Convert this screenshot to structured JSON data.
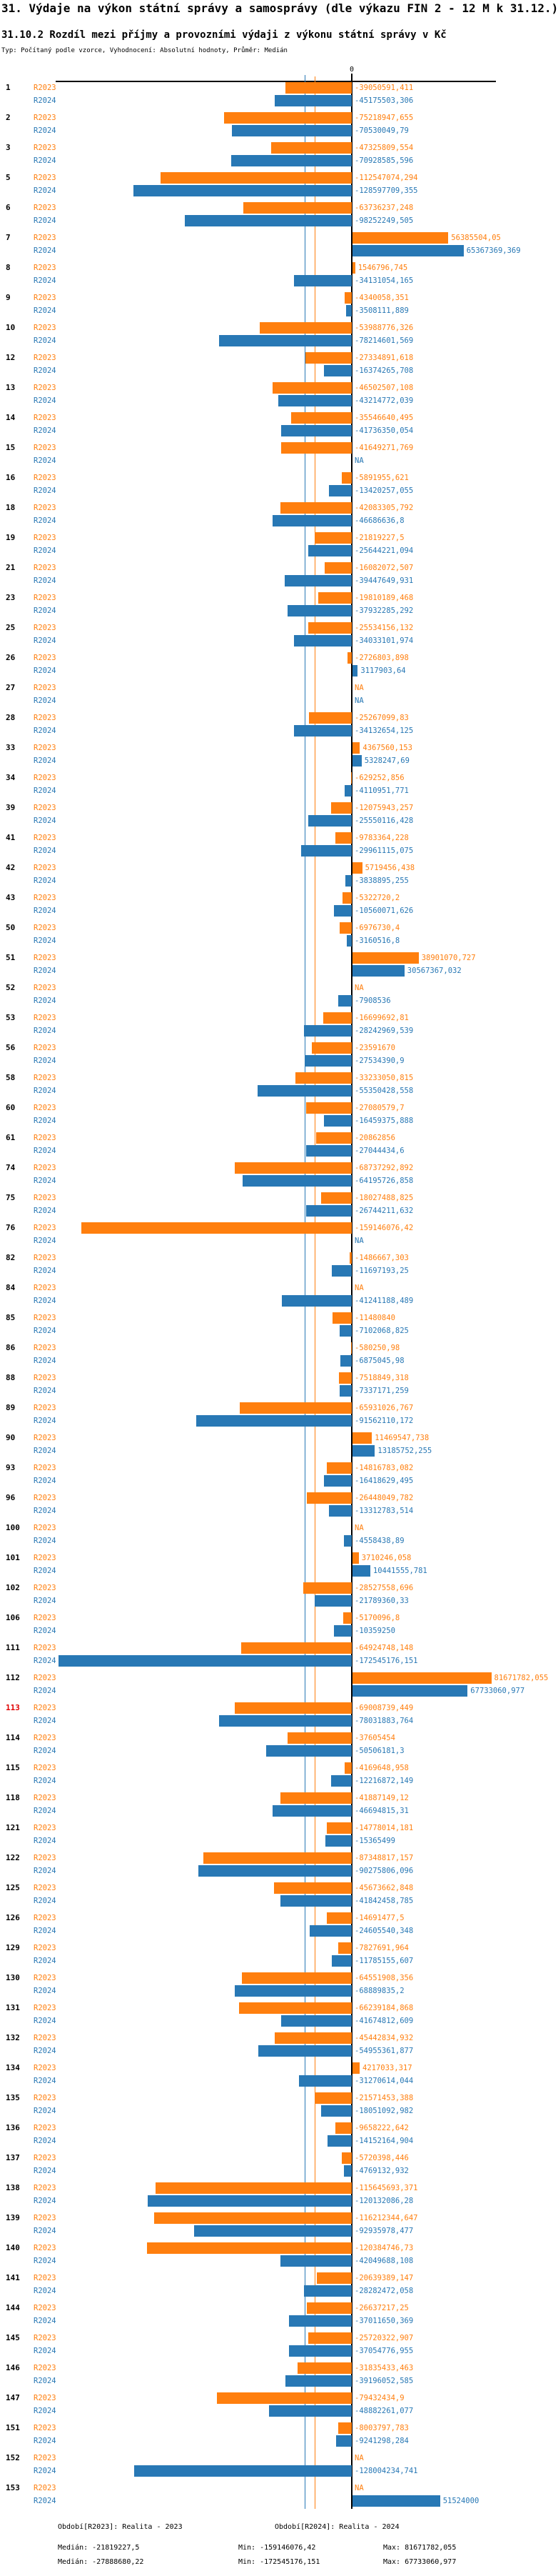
{
  "header": {
    "title": "31. Výdaje na výkon státní správy a samosprávy (dle výkazu FIN 2 - 12 M k 31.12.)",
    "subtitle": "31.10.2 Rozdíl mezi příjmy a provozními výdaji z výkonu státní správy v Kč",
    "meta": "Typ: Počítaný podle vzorce, Vyhodnocení: Absolutní hodnoty, Průměr: Medián"
  },
  "colors": {
    "r2023": "#FF7F0E",
    "r2024": "#2878B5",
    "highlight_id": "#E00000",
    "axis": "#000000"
  },
  "chart_data": {
    "type": "bar",
    "orientation": "horizontal",
    "unit": "Kč",
    "zero_label": "0",
    "grid": false,
    "axis_range": [
      -175000000,
      85000000
    ],
    "series": [
      {
        "key": "R2023",
        "label": "R2023",
        "color": "#FF7F0E",
        "median": -21819227.5,
        "min": -159146076.42,
        "max": 81671782.055
      },
      {
        "key": "R2024",
        "label": "R2024",
        "color": "#2878B5",
        "median": -27888680.22,
        "min": -172545176.151,
        "max": 67733060.977
      }
    ],
    "rows": [
      {
        "id": "1",
        "R2023": "-39050591,411",
        "R2024": "-45175503,306"
      },
      {
        "id": "2",
        "R2023": "-75218947,655",
        "R2024": "-70530049,79"
      },
      {
        "id": "3",
        "R2023": "-47325809,554",
        "R2024": "-70928585,596"
      },
      {
        "id": "5",
        "R2023": "-112547074,294",
        "R2024": "-128597709,355"
      },
      {
        "id": "6",
        "R2023": "-63736237,248",
        "R2024": "-98252249,505"
      },
      {
        "id": "7",
        "R2023": "56385504,05",
        "R2024": "65367369,369"
      },
      {
        "id": "8",
        "R2023": "1546796,745",
        "R2024": "-34131054,165"
      },
      {
        "id": "9",
        "R2023": "-4340058,351",
        "R2024": "-3508111,889"
      },
      {
        "id": "10",
        "R2023": "-53988776,326",
        "R2024": "-78214601,569"
      },
      {
        "id": "12",
        "R2023": "-27334891,618",
        "R2024": "-16374265,708"
      },
      {
        "id": "13",
        "R2023": "-46502507,108",
        "R2024": "-43214772,039"
      },
      {
        "id": "14",
        "R2023": "-35546640,495",
        "R2024": "-41736350,054"
      },
      {
        "id": "15",
        "R2023": "-41649271,769",
        "R2024": "NA"
      },
      {
        "id": "16",
        "R2023": "-5891955,621",
        "R2024": "-13420257,055"
      },
      {
        "id": "18",
        "R2023": "-42083305,792",
        "R2024": "-46686636,8"
      },
      {
        "id": "19",
        "R2023": "-21819227,5",
        "R2024": "-25644221,094"
      },
      {
        "id": "21",
        "R2023": "-16082072,507",
        "R2024": "-39447649,931"
      },
      {
        "id": "23",
        "R2023": "-19810189,468",
        "R2024": "-37932285,292"
      },
      {
        "id": "25",
        "R2023": "-25534156,132",
        "R2024": "-34033101,974"
      },
      {
        "id": "26",
        "R2023": "-2726803,898",
        "R2024": "3117903,64"
      },
      {
        "id": "27",
        "R2023": "NA",
        "R2024": "NA"
      },
      {
        "id": "28",
        "R2023": "-25267099,83",
        "R2024": "-34132654,125"
      },
      {
        "id": "33",
        "R2023": "4367560,153",
        "R2024": "5328247,69"
      },
      {
        "id": "34",
        "R2023": "-629252,856",
        "R2024": "-4110951,771"
      },
      {
        "id": "39",
        "R2023": "-12075943,257",
        "R2024": "-25550116,428"
      },
      {
        "id": "41",
        "R2023": "-9783364,228",
        "R2024": "-29961115,075"
      },
      {
        "id": "42",
        "R2023": "5719456,438",
        "R2024": "-3838895,255"
      },
      {
        "id": "43",
        "R2023": "-5322720,2",
        "R2024": "-10560071,626"
      },
      {
        "id": "50",
        "R2023": "-6976730,4",
        "R2024": "-3160516,8"
      },
      {
        "id": "51",
        "R2023": "38901070,727",
        "R2024": "30567367,032"
      },
      {
        "id": "52",
        "R2023": "NA",
        "R2024": "-7908536"
      },
      {
        "id": "53",
        "R2023": "-16699692,81",
        "R2024": "-28242969,539"
      },
      {
        "id": "56",
        "R2023": "-23591670",
        "R2024": "-27534390,9"
      },
      {
        "id": "58",
        "R2023": "-33233050,815",
        "R2024": "-55350428,558"
      },
      {
        "id": "60",
        "R2023": "-27080579,7",
        "R2024": "-16459375,888"
      },
      {
        "id": "61",
        "R2023": "-20862856",
        "R2024": "-27044434,6"
      },
      {
        "id": "74",
        "R2023": "-68737292,892",
        "R2024": "-64195726,858"
      },
      {
        "id": "75",
        "R2023": "-18027488,825",
        "R2024": "-26744211,632"
      },
      {
        "id": "76",
        "R2023": "-159146076,42",
        "R2024": "NA"
      },
      {
        "id": "82",
        "R2023": "-1486667,303",
        "R2024": "-11697193,25"
      },
      {
        "id": "84",
        "R2023": "NA",
        "R2024": "-41241188,489"
      },
      {
        "id": "85",
        "R2023": "-11480840",
        "R2024": "-7102068,825"
      },
      {
        "id": "86",
        "R2023": "-580250,98",
        "R2024": "-6875045,98"
      },
      {
        "id": "88",
        "R2023": "-7518849,318",
        "R2024": "-7337171,259"
      },
      {
        "id": "89",
        "R2023": "-65931026,767",
        "R2024": "-91562110,172"
      },
      {
        "id": "90",
        "R2023": "11469547,738",
        "R2024": "13185752,255"
      },
      {
        "id": "93",
        "R2023": "-14816783,082",
        "R2024": "-16418629,495"
      },
      {
        "id": "96",
        "R2023": "-26448049,782",
        "R2024": "-13312783,514"
      },
      {
        "id": "100",
        "R2023": "NA",
        "R2024": "-4558438,89"
      },
      {
        "id": "101",
        "R2023": "3710246,058",
        "R2024": "10441555,781"
      },
      {
        "id": "102",
        "R2023": "-28527558,696",
        "R2024": "-21789360,33"
      },
      {
        "id": "106",
        "R2023": "-5170096,8",
        "R2024": "-10359250"
      },
      {
        "id": "111",
        "R2023": "-64924748,148",
        "R2024": "-172545176,151"
      },
      {
        "id": "112",
        "R2023": "81671782,055",
        "R2024": "67733060,977"
      },
      {
        "id": "113",
        "R2023": "-69008739,449",
        "R2024": "-78031883,764",
        "highlight": true
      },
      {
        "id": "114",
        "R2023": "-37605454",
        "R2024": "-50506181,3"
      },
      {
        "id": "115",
        "R2023": "-4169648,958",
        "R2024": "-12216872,149"
      },
      {
        "id": "118",
        "R2023": "-41887149,12",
        "R2024": "-46694815,31"
      },
      {
        "id": "121",
        "R2023": "-14778014,181",
        "R2024": "-15365499"
      },
      {
        "id": "122",
        "R2023": "-87348817,157",
        "R2024": "-90275806,096"
      },
      {
        "id": "125",
        "R2023": "-45673662,848",
        "R2024": "-41842458,785"
      },
      {
        "id": "126",
        "R2023": "-14691477,5",
        "R2024": "-24605540,348"
      },
      {
        "id": "129",
        "R2023": "-7827691,964",
        "R2024": "-11785155,607"
      },
      {
        "id": "130",
        "R2023": "-64551908,356",
        "R2024": "-68889835,2"
      },
      {
        "id": "131",
        "R2023": "-66239184,868",
        "R2024": "-41674812,609"
      },
      {
        "id": "132",
        "R2023": "-45442834,932",
        "R2024": "-54955361,877"
      },
      {
        "id": "134",
        "R2023": "4217033,317",
        "R2024": "-31270614,044"
      },
      {
        "id": "135",
        "R2023": "-21571453,388",
        "R2024": "-18051092,982"
      },
      {
        "id": "136",
        "R2023": "-9658222,642",
        "R2024": "-14152164,904"
      },
      {
        "id": "137",
        "R2023": "-5720398,446",
        "R2024": "-4769132,932"
      },
      {
        "id": "138",
        "R2023": "-115645693,371",
        "R2024": "-120132086,28"
      },
      {
        "id": "139",
        "R2023": "-116212344,647",
        "R2024": "-92935978,477"
      },
      {
        "id": "140",
        "R2023": "-120384746,73",
        "R2024": "-42049688,108"
      },
      {
        "id": "141",
        "R2023": "-20639389,147",
        "R2024": "-28282472,058"
      },
      {
        "id": "144",
        "R2023": "-26637217,25",
        "R2024": "-37011650,369"
      },
      {
        "id": "145",
        "R2023": "-25720322,907",
        "R2024": "-37054776,955"
      },
      {
        "id": "146",
        "R2023": "-31835433,463",
        "R2024": "-39196052,585"
      },
      {
        "id": "147",
        "R2023": "-79432434,9",
        "R2024": "-48882261,077"
      },
      {
        "id": "151",
        "R2023": "-8003797,783",
        "R2024": "-9241298,284"
      },
      {
        "id": "152",
        "R2023": "NA",
        "R2024": "-128004234,741"
      },
      {
        "id": "153",
        "R2023": "NA",
        "R2024": "51524000"
      }
    ]
  },
  "footer": {
    "legend_2023": "Období[R2023]: Realita - 2023",
    "legend_2024": "Období[R2024]: Realita - 2024",
    "stats_2023": {
      "median": "Medián: -21819227,5",
      "min": "Min: -159146076,42",
      "max": "Max: 81671782,055"
    },
    "stats_2024": {
      "median": "Medián: -27888680,22",
      "min": "Min: -172545176,151",
      "max": "Max: 67733060,977"
    }
  }
}
